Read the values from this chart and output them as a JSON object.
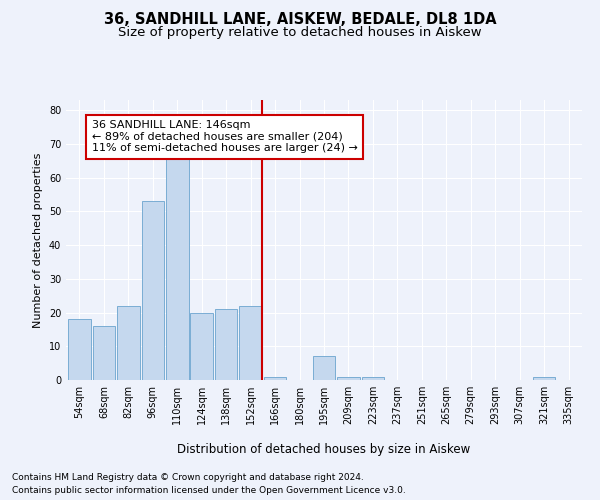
{
  "title1": "36, SANDHILL LANE, AISKEW, BEDALE, DL8 1DA",
  "title2": "Size of property relative to detached houses in Aiskew",
  "xlabel": "Distribution of detached houses by size in Aiskew",
  "ylabel": "Number of detached properties",
  "categories": [
    "54sqm",
    "68sqm",
    "82sqm",
    "96sqm",
    "110sqm",
    "124sqm",
    "138sqm",
    "152sqm",
    "166sqm",
    "180sqm",
    "195sqm",
    "209sqm",
    "223sqm",
    "237sqm",
    "251sqm",
    "265sqm",
    "279sqm",
    "293sqm",
    "307sqm",
    "321sqm",
    "335sqm"
  ],
  "values": [
    18,
    16,
    22,
    53,
    67,
    20,
    21,
    22,
    1,
    0,
    7,
    1,
    1,
    0,
    0,
    0,
    0,
    0,
    0,
    1,
    0
  ],
  "bar_color": "#c5d8ee",
  "bar_edge_color": "#7aadd4",
  "vline_color": "#cc0000",
  "annotation_line1": "36 SANDHILL LANE: 146sqm",
  "annotation_line2": "← 89% of detached houses are smaller (204)",
  "annotation_line3": "11% of semi-detached houses are larger (24) →",
  "annotation_box_color": "white",
  "annotation_box_edge": "#cc0000",
  "ylim": [
    0,
    83
  ],
  "yticks": [
    0,
    10,
    20,
    30,
    40,
    50,
    60,
    70,
    80
  ],
  "footer1": "Contains HM Land Registry data © Crown copyright and database right 2024.",
  "footer2": "Contains public sector information licensed under the Open Government Licence v3.0.",
  "background_color": "#eef2fb",
  "grid_color": "#ffffff",
  "title1_fontsize": 10.5,
  "title2_fontsize": 9.5,
  "xlabel_fontsize": 8.5,
  "ylabel_fontsize": 8,
  "tick_fontsize": 7,
  "annotation_fontsize": 8,
  "footer_fontsize": 6.5
}
